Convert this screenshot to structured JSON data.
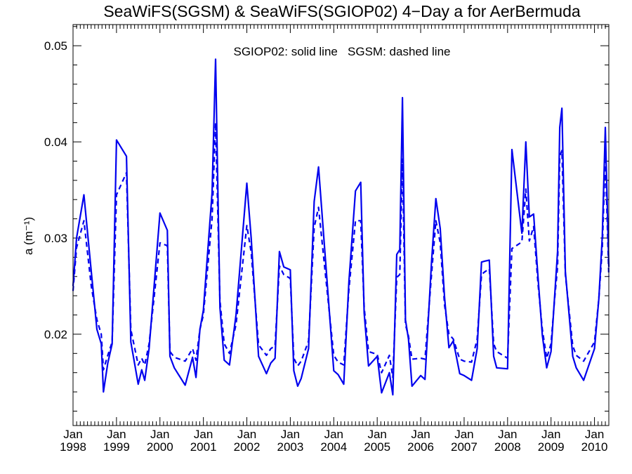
{
  "chart_data": {
    "type": "line",
    "title": "SeaWiFS(SGSM) & SeaWiFS(SGIOP02) 4−Day a for AerBermuda",
    "annotation": "SGIOP02: solid line   SGSM: dashed line",
    "ylabel": "a (m⁻¹)",
    "xlabel": "",
    "xlim": [
      1998.0,
      2010.33
    ],
    "ylim": [
      0.0105,
      0.0522
    ],
    "x_tick_labels": [
      {
        "x": 1998.0,
        "month": "Jan",
        "year": "1998"
      },
      {
        "x": 1999.0,
        "month": "Jan",
        "year": "1999"
      },
      {
        "x": 2000.0,
        "month": "Jan",
        "year": "2000"
      },
      {
        "x": 2001.0,
        "month": "Jan",
        "year": "2001"
      },
      {
        "x": 2002.0,
        "month": "Jan",
        "year": "2002"
      },
      {
        "x": 2003.0,
        "month": "Jan",
        "year": "2003"
      },
      {
        "x": 2004.0,
        "month": "Jan",
        "year": "2004"
      },
      {
        "x": 2005.0,
        "month": "Jan",
        "year": "2005"
      },
      {
        "x": 2006.0,
        "month": "Jan",
        "year": "2006"
      },
      {
        "x": 2007.0,
        "month": "Jan",
        "year": "2007"
      },
      {
        "x": 2008.0,
        "month": "Jan",
        "year": "2008"
      },
      {
        "x": 2009.0,
        "month": "Jan",
        "year": "2009"
      },
      {
        "x": 2010.0,
        "month": "Jan",
        "year": "2010"
      }
    ],
    "y_ticks": [
      {
        "value": 0.02,
        "label": "0.02"
      },
      {
        "value": 0.03,
        "label": "0.03"
      },
      {
        "value": 0.04,
        "label": "0.04"
      },
      {
        "value": 0.05,
        "label": "0.05"
      }
    ],
    "y_minor_step": 0.002,
    "grid": false,
    "series": [
      {
        "name": "SGIOP02",
        "style": "solid",
        "color": "#0000ee",
        "x": [
          1998.0,
          1998.08,
          1998.25,
          1998.42,
          1998.55,
          1998.65,
          1998.7,
          1998.8,
          1998.9,
          1999.0,
          1999.23,
          1999.33,
          1999.5,
          1999.58,
          1999.65,
          1999.75,
          2000.0,
          2000.17,
          2000.23,
          2000.33,
          2000.58,
          2000.75,
          2000.83,
          2000.92,
          2001.0,
          2001.2,
          2001.28,
          2001.38,
          2001.48,
          2001.6,
          2001.75,
          2002.0,
          2002.1,
          2002.27,
          2002.45,
          2002.55,
          2002.65,
          2002.75,
          2002.85,
          2003.0,
          2003.08,
          2003.17,
          2003.25,
          2003.42,
          2003.55,
          2003.65,
          2004.0,
          2004.1,
          2004.23,
          2004.35,
          2004.5,
          2004.62,
          2004.7,
          2004.8,
          2005.0,
          2005.1,
          2005.28,
          2005.36,
          2005.45,
          2005.52,
          2005.58,
          2005.65,
          2005.72,
          2005.8,
          2006.0,
          2006.1,
          2006.25,
          2006.35,
          2006.45,
          2006.55,
          2006.65,
          2006.75,
          2006.9,
          2007.0,
          2007.17,
          2007.3,
          2007.4,
          2007.48,
          2007.58,
          2007.68,
          2007.75,
          2008.0,
          2008.1,
          2008.33,
          2008.42,
          2008.5,
          2008.6,
          2008.7,
          2008.8,
          2008.9,
          2009.0,
          2009.08,
          2009.15,
          2009.2,
          2009.25,
          2009.33,
          2009.5,
          2009.58,
          2009.75,
          2010.0,
          2010.1,
          2010.18,
          2010.25,
          2010.33
        ],
        "y": [
          0.025,
          0.03,
          0.0345,
          0.0265,
          0.0205,
          0.019,
          0.014,
          0.017,
          0.019,
          0.0402,
          0.0385,
          0.0192,
          0.0148,
          0.0163,
          0.0152,
          0.0185,
          0.0326,
          0.0308,
          0.0177,
          0.0165,
          0.0147,
          0.0176,
          0.0155,
          0.0205,
          0.0225,
          0.0347,
          0.0486,
          0.0228,
          0.0173,
          0.0168,
          0.022,
          0.0357,
          0.03,
          0.0177,
          0.0159,
          0.017,
          0.0175,
          0.0286,
          0.027,
          0.0267,
          0.0162,
          0.0146,
          0.0154,
          0.0185,
          0.0338,
          0.0374,
          0.0162,
          0.0158,
          0.0148,
          0.0255,
          0.0349,
          0.0358,
          0.0222,
          0.0167,
          0.0177,
          0.0139,
          0.016,
          0.0137,
          0.0283,
          0.0288,
          0.0446,
          0.0215,
          0.0195,
          0.0146,
          0.0157,
          0.0153,
          0.0275,
          0.0341,
          0.031,
          0.0238,
          0.0186,
          0.0193,
          0.0159,
          0.0157,
          0.0152,
          0.0185,
          0.0275,
          0.0276,
          0.0277,
          0.0177,
          0.0165,
          0.0164,
          0.0392,
          0.0305,
          0.04,
          0.0322,
          0.0325,
          0.026,
          0.0199,
          0.0165,
          0.0182,
          0.0237,
          0.0286,
          0.0415,
          0.0435,
          0.0265,
          0.0177,
          0.0165,
          0.0152,
          0.0185,
          0.0237,
          0.0302,
          0.0415,
          0.027
        ]
      },
      {
        "name": "SGSM",
        "style": "dashed",
        "color": "#0000ee",
        "x": [
          1998.0,
          1998.08,
          1998.25,
          1998.42,
          1998.55,
          1998.65,
          1998.7,
          1998.8,
          1998.9,
          1999.0,
          1999.23,
          1999.33,
          1999.5,
          1999.58,
          1999.65,
          1999.75,
          2000.0,
          2000.17,
          2000.23,
          2000.33,
          2000.58,
          2000.75,
          2000.83,
          2000.92,
          2001.0,
          2001.2,
          2001.28,
          2001.38,
          2001.48,
          2001.6,
          2001.75,
          2002.0,
          2002.1,
          2002.27,
          2002.45,
          2002.55,
          2002.65,
          2002.75,
          2002.85,
          2003.0,
          2003.08,
          2003.17,
          2003.25,
          2003.42,
          2003.55,
          2003.65,
          2004.0,
          2004.1,
          2004.23,
          2004.35,
          2004.5,
          2004.62,
          2004.7,
          2004.8,
          2005.0,
          2005.1,
          2005.28,
          2005.36,
          2005.45,
          2005.52,
          2005.58,
          2005.65,
          2005.72,
          2005.8,
          2006.0,
          2006.1,
          2006.25,
          2006.35,
          2006.45,
          2006.55,
          2006.65,
          2006.75,
          2006.9,
          2007.0,
          2007.17,
          2007.3,
          2007.4,
          2007.48,
          2007.58,
          2007.68,
          2007.75,
          2008.0,
          2008.1,
          2008.33,
          2008.42,
          2008.5,
          2008.6,
          2008.7,
          2008.8,
          2008.9,
          2009.0,
          2009.08,
          2009.15,
          2009.2,
          2009.25,
          2009.33,
          2009.5,
          2009.58,
          2009.75,
          2010.0,
          2010.1,
          2010.18,
          2010.25,
          2010.33
        ],
        "y": [
          0.0245,
          0.029,
          0.0318,
          0.025,
          0.0215,
          0.02,
          0.0163,
          0.0178,
          0.0192,
          0.0345,
          0.0368,
          0.0205,
          0.0168,
          0.0175,
          0.0168,
          0.019,
          0.0295,
          0.0292,
          0.0182,
          0.0176,
          0.0172,
          0.0185,
          0.0173,
          0.0205,
          0.022,
          0.032,
          0.042,
          0.0235,
          0.019,
          0.018,
          0.021,
          0.0313,
          0.0285,
          0.0189,
          0.0178,
          0.0185,
          0.0188,
          0.0271,
          0.0262,
          0.0258,
          0.0175,
          0.0167,
          0.0172,
          0.0193,
          0.0311,
          0.0332,
          0.0178,
          0.0171,
          0.0168,
          0.0247,
          0.0318,
          0.0318,
          0.0228,
          0.0182,
          0.0179,
          0.016,
          0.0178,
          0.0155,
          0.0259,
          0.0262,
          0.0382,
          0.021,
          0.0198,
          0.0174,
          0.0175,
          0.0174,
          0.0262,
          0.0318,
          0.0295,
          0.023,
          0.02,
          0.0195,
          0.0174,
          0.0172,
          0.0171,
          0.0195,
          0.0262,
          0.0265,
          0.0268,
          0.019,
          0.0182,
          0.0175,
          0.0289,
          0.0296,
          0.0351,
          0.0297,
          0.0312,
          0.0253,
          0.0205,
          0.0175,
          0.019,
          0.0235,
          0.027,
          0.0385,
          0.0391,
          0.0262,
          0.0188,
          0.0178,
          0.0172,
          0.0192,
          0.0237,
          0.029,
          0.0385,
          0.026
        ]
      }
    ]
  }
}
